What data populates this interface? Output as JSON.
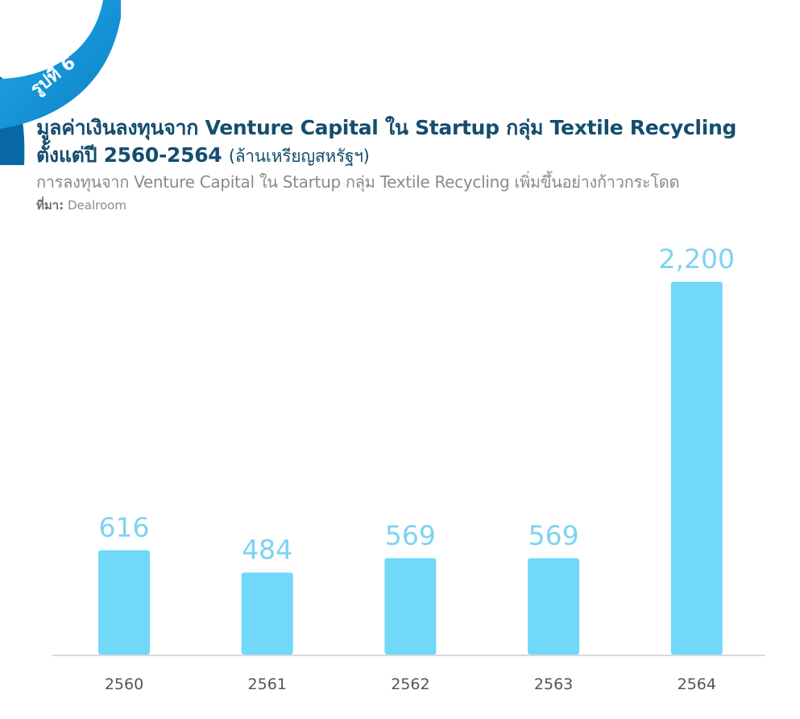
{
  "badge": {
    "label": "รูปที่ 6"
  },
  "header": {
    "title_line1": "มูลค่าเงินลงทุนจาก Venture Capital ใน Startup กลุ่ม Textile Recycling",
    "title_line2": "ตั้งแต่ปี 2560-2564",
    "title_unit": "(ล้านเหรียญสหรัฐฯ)",
    "subtitle": "การลงทุนจาก Venture Capital ใน Startup กลุ่ม Textile Recycling เพิ่มขึ้นอย่างก้าวกระโดด",
    "source_label": "ที่มา:",
    "source_value": "Dealroom"
  },
  "colors": {
    "bar": "#72d8fa",
    "value_label": "#7dd3f0",
    "title": "#154d6e",
    "ribbon": "#0d8fd6",
    "axis": "#d9d9d9"
  },
  "chart_data": {
    "type": "bar",
    "categories": [
      "2560",
      "2561",
      "2562",
      "2563",
      "2564"
    ],
    "values": [
      616,
      484,
      569,
      569,
      2200
    ],
    "value_labels": [
      "616",
      "484",
      "569",
      "569",
      "2,200"
    ],
    "ylim": [
      0,
      2200
    ],
    "grid": false,
    "legend": "none"
  }
}
